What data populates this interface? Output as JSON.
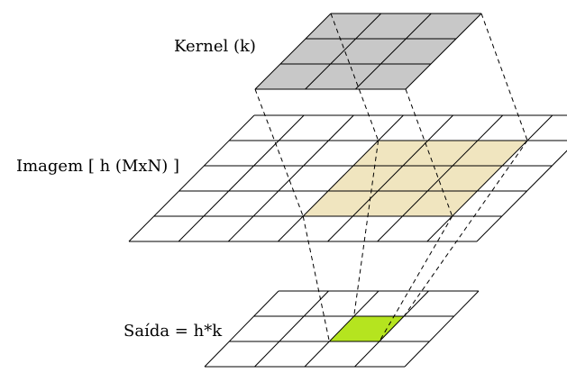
{
  "labels": {
    "kernel": "Kernel (k)",
    "image": "Imagem [ h (MxN) ]",
    "output": "Saída = h*k"
  },
  "grids": {
    "kernel": {
      "rows": 3,
      "cols": 3
    },
    "image": {
      "rows": 5,
      "cols": 7
    },
    "output": {
      "rows": 3,
      "cols": 4
    }
  },
  "highlights": {
    "image_region": {
      "row_start": 1,
      "row_end": 4,
      "col_start": 3,
      "col_end": 6
    },
    "output_cell": {
      "row": 1,
      "col": 2
    }
  },
  "colors": {
    "kernel_fill": "#c8c8c8",
    "image_highlight": "#f0e5bf",
    "output_highlight": "#b5e41f",
    "line": "#000000",
    "background": "#ffffff"
  }
}
